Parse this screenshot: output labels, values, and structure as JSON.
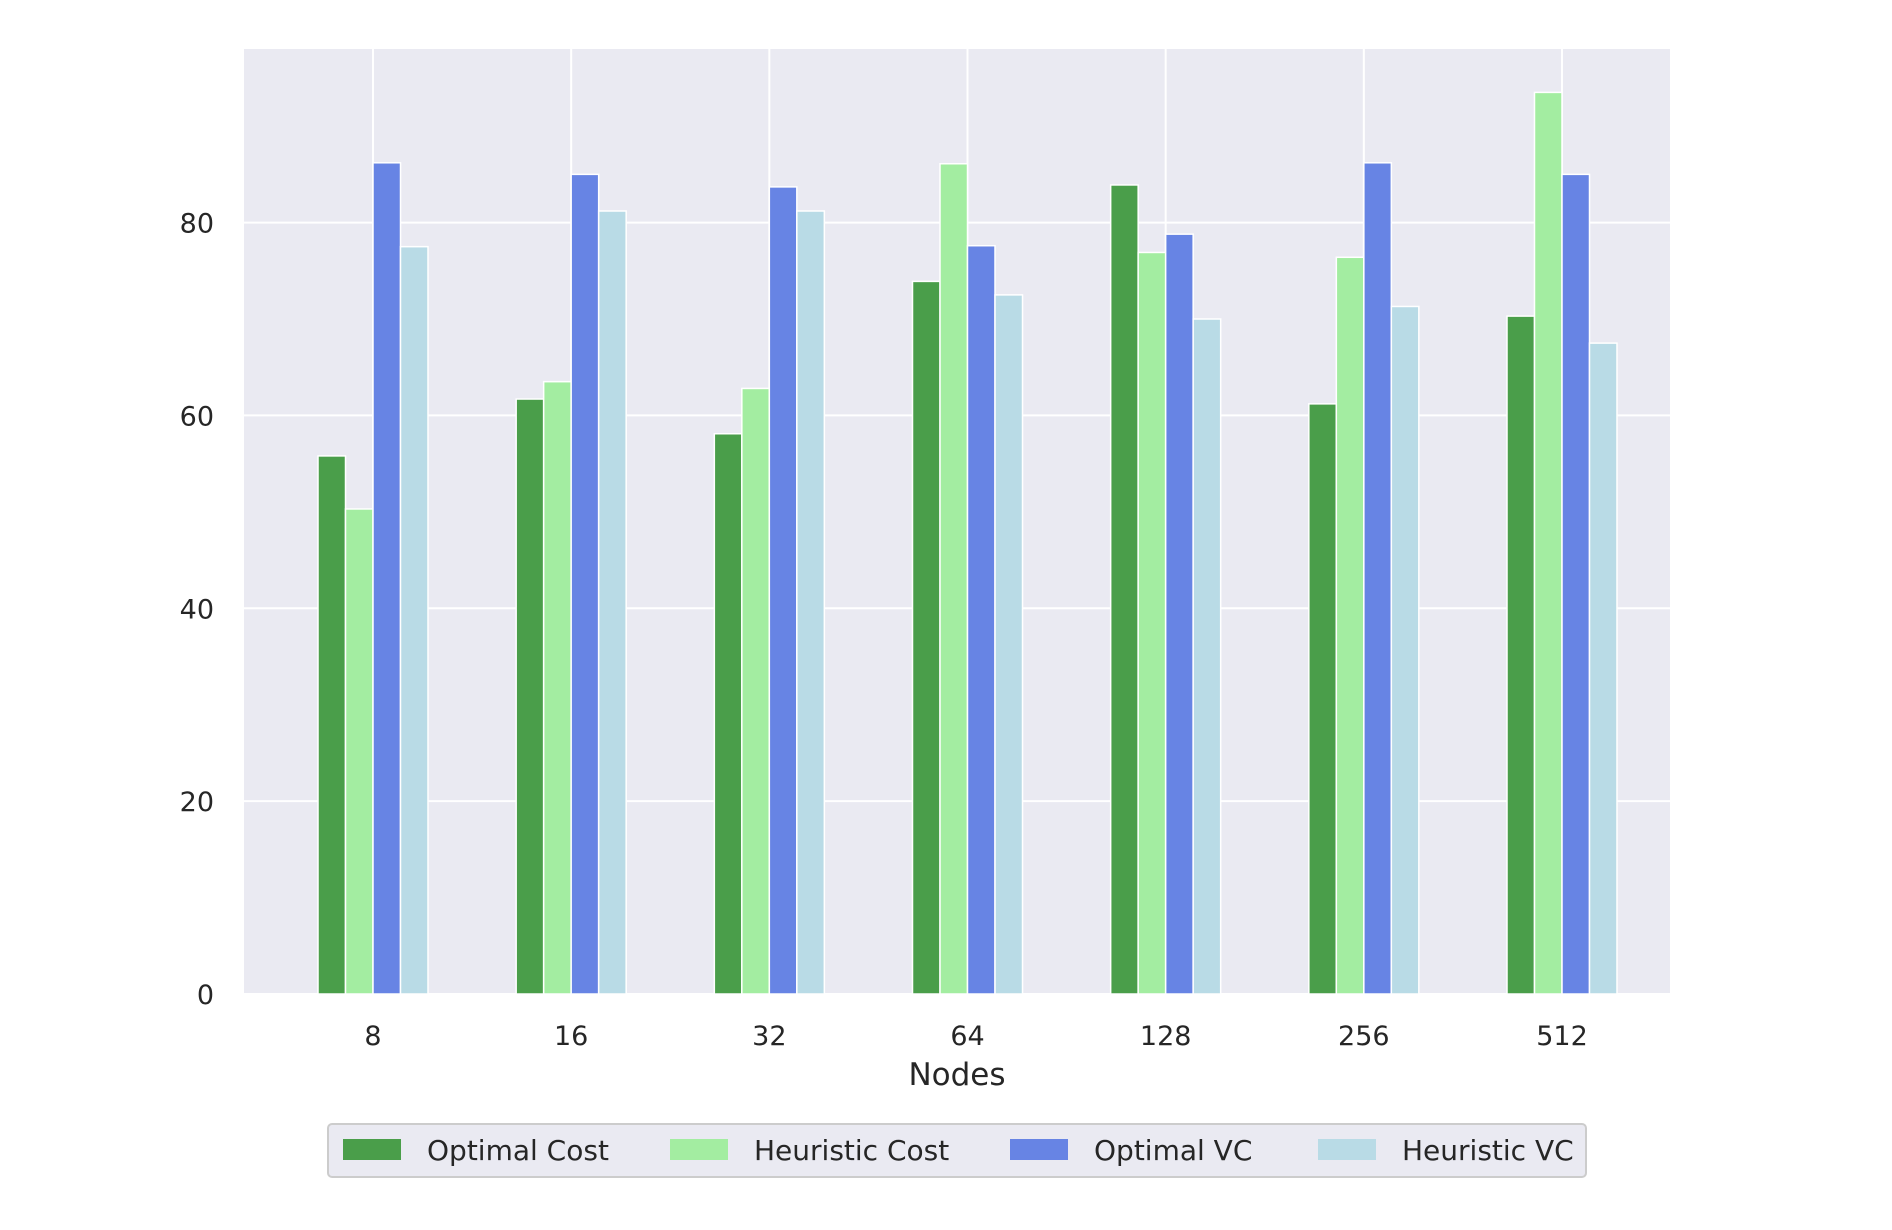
{
  "chart_data": {
    "type": "bar",
    "title": "",
    "xlabel": "Nodes",
    "ylabel": "",
    "categories": [
      "8",
      "16",
      "32",
      "64",
      "128",
      "256",
      "512"
    ],
    "series": [
      {
        "name": "Optimal Cost",
        "color": "#4a9e4a",
        "values": [
          55.8,
          61.7,
          58.1,
          73.9,
          83.9,
          61.2,
          70.3
        ]
      },
      {
        "name": "Heuristic Cost",
        "color": "#a3eda1",
        "values": [
          50.3,
          63.5,
          62.8,
          86.1,
          76.9,
          76.4,
          93.5
        ]
      },
      {
        "name": "Optimal VC",
        "color": "#6784e4",
        "values": [
          86.2,
          85.0,
          83.7,
          77.6,
          78.8,
          86.2,
          85.0
        ]
      },
      {
        "name": "Heuristic VC",
        "color": "#b9dbe6",
        "values": [
          77.5,
          81.2,
          81.2,
          72.5,
          70.0,
          71.3,
          67.5
        ]
      }
    ],
    "yticks": [
      0,
      20,
      40,
      60,
      80
    ],
    "ylim": [
      0,
      98
    ],
    "grid": true,
    "legend_position": "bottom-center"
  }
}
